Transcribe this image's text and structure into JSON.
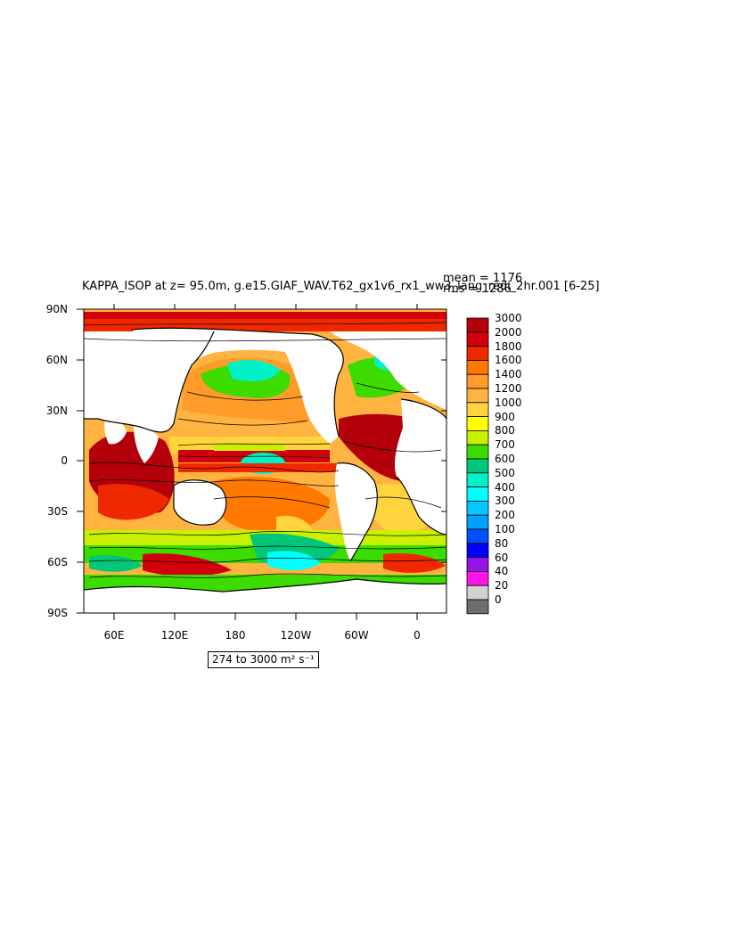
{
  "title": "KAPPA_ISOP at z=  95.0m, g.e15.GIAF_WAV.T62_gx1v6_rx1_ww3_lang_redi_2hr.001 [6-25]",
  "stats": {
    "mean": "mean = 1176",
    "rms": "rms = 1286"
  },
  "range_label": "274 to 3000 m² s⁻¹",
  "lat_labels": [
    "90N",
    "60N",
    "30N",
    "0",
    "30S",
    "60S",
    "90S"
  ],
  "lon_labels": [
    "60E",
    "120E",
    "180",
    "120W",
    "60W",
    "0"
  ],
  "colorbar": {
    "labels": [
      "3000",
      "2000",
      "1800",
      "1600",
      "1400",
      "1200",
      "1000",
      "900",
      "800",
      "700",
      "600",
      "500",
      "400",
      "300",
      "200",
      "100",
      "80",
      "60",
      "40",
      "20",
      "0"
    ],
    "colors": [
      "#b3000a",
      "#d2000b",
      "#f02800",
      "#ff7800",
      "#ff9b28",
      "#ffb341",
      "#ffd43c",
      "#ffff00",
      "#c8f000",
      "#3cdc00",
      "#00c878",
      "#00f0c8",
      "#00ffff",
      "#00c8ff",
      "#00a0ff",
      "#0050ff",
      "#0000ff",
      "#9614e6",
      "#ff14e6",
      "#d2d2d2",
      "#6e6e6e"
    ]
  },
  "legend_colors": {
    "land": "#ffffff",
    "contour": "#000000"
  }
}
